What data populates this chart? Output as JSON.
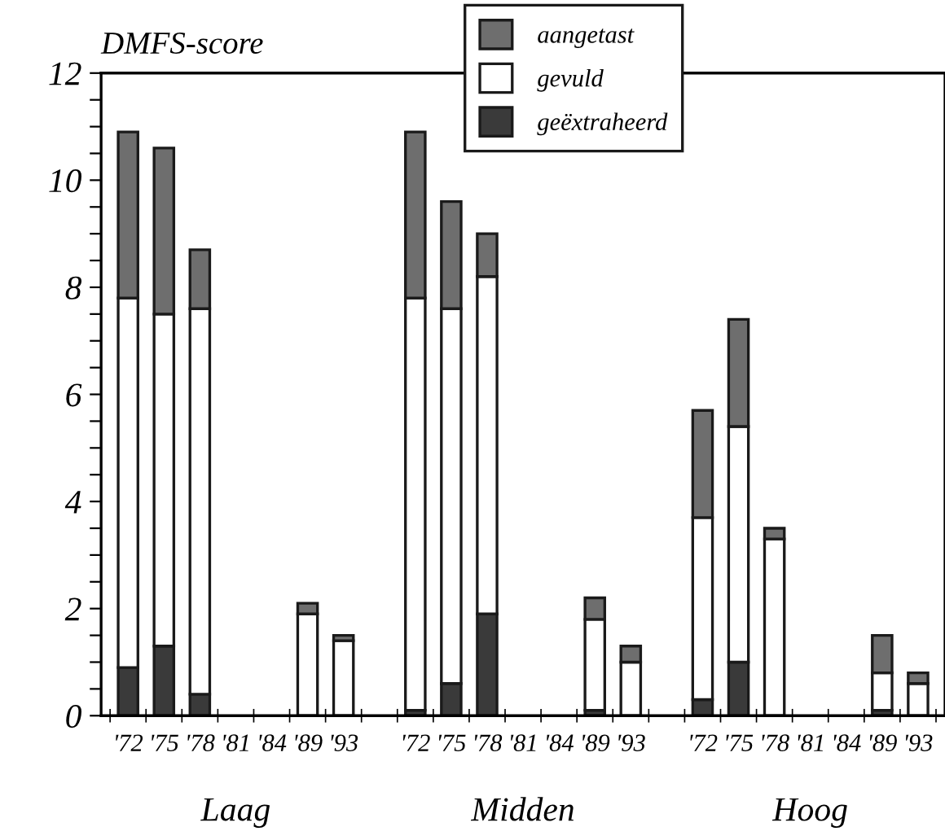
{
  "chart_data": {
    "type": "bar",
    "stacked": true,
    "ylabel": "DMFS-score",
    "categories": [
      "'72",
      "'75",
      "'78",
      "'81",
      "'84",
      "'89",
      "'93",
      null,
      "'72",
      "'75",
      "'78",
      "'81",
      "'84",
      "'89",
      "'93",
      null,
      "'72",
      "'75",
      "'78",
      "'81",
      "'84",
      "'89",
      "'93"
    ],
    "series": [
      {
        "name": "geëxtraheerd",
        "color": "#3a3a3a",
        "values": [
          0.9,
          1.3,
          0.4,
          null,
          null,
          0,
          0,
          null,
          0.1,
          0.6,
          1.9,
          null,
          null,
          0.1,
          0,
          null,
          0.3,
          1.0,
          0,
          null,
          null,
          0.1,
          0
        ]
      },
      {
        "name": "gevuld",
        "color": "#ffffff",
        "values": [
          6.9,
          6.2,
          7.2,
          null,
          null,
          1.9,
          1.4,
          null,
          7.7,
          7.0,
          6.3,
          null,
          null,
          1.7,
          1.0,
          null,
          3.4,
          4.4,
          3.3,
          null,
          null,
          0.7,
          0.6
        ]
      },
      {
        "name": "aangetast",
        "color": "#6e6e6e",
        "values": [
          3.1,
          3.1,
          1.1,
          null,
          null,
          0.2,
          0.1,
          null,
          3.1,
          2.0,
          0.8,
          null,
          null,
          0.4,
          0.3,
          null,
          2.0,
          2.0,
          0.2,
          null,
          null,
          0.7,
          0.2
        ]
      }
    ],
    "ylim": [
      0,
      12
    ],
    "yticks": [
      0,
      {
        "value": 0.5,
        "label": null
      },
      2,
      {
        "value": 1,
        "label": null
      },
      {
        "value": 1.5,
        "label": null
      },
      {
        "value": 2.5,
        "label": null
      },
      {
        "value": 3,
        "label": null
      },
      {
        "value": 3.5,
        "label": null
      },
      4,
      {
        "value": 4.5,
        "label": null
      },
      {
        "value": 5,
        "label": null
      },
      {
        "value": 5.5,
        "label": null
      },
      6,
      {
        "value": 6.5,
        "label": null
      },
      {
        "value": 7,
        "label": null
      },
      {
        "value": 7.5,
        "label": null
      },
      8,
      {
        "value": 8.5,
        "label": null
      },
      {
        "value": 9,
        "label": null
      },
      {
        "value": 9.5,
        "label": null
      },
      10,
      {
        "value": 10.5,
        "label": null
      },
      {
        "value": 11,
        "label": null
      },
      {
        "value": 11.5,
        "label": null
      },
      12
    ],
    "annotations": [
      "Laag",
      "Midden",
      "Hoog"
    ],
    "legend": "top",
    "grid": false
  }
}
